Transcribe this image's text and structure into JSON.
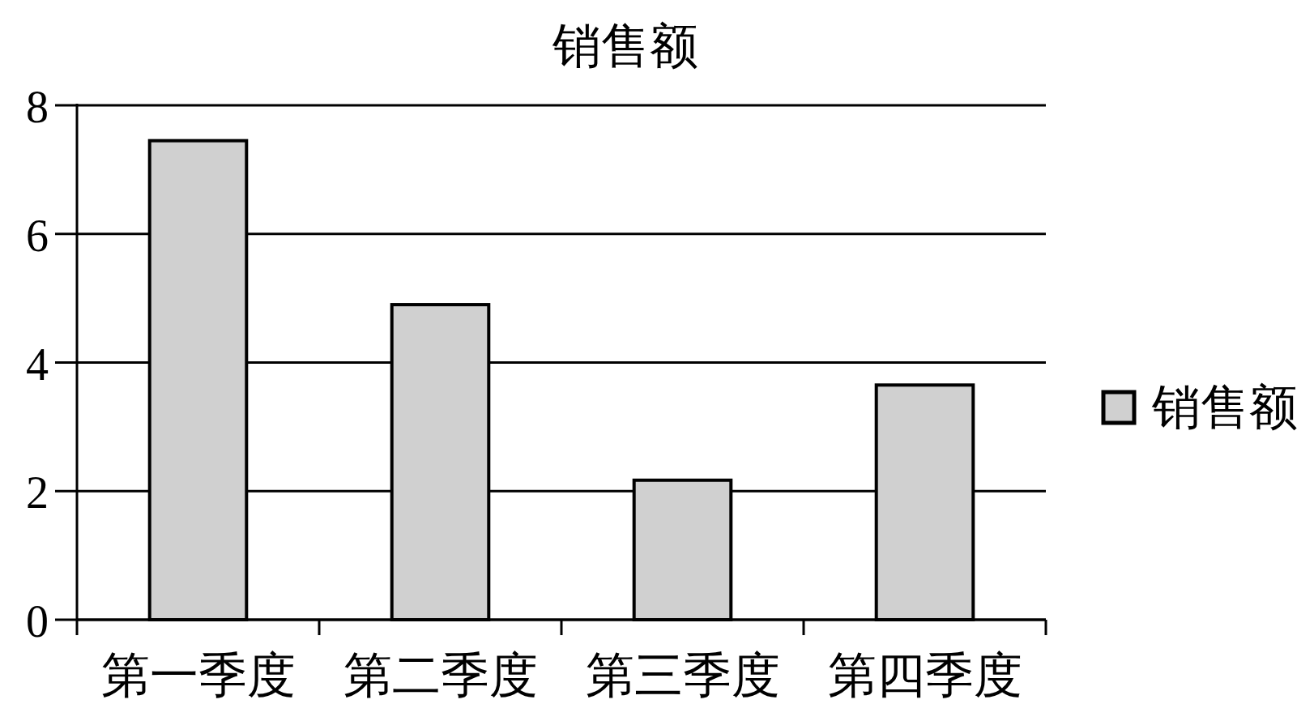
{
  "chart_data": {
    "type": "bar",
    "title": "销售额",
    "categories": [
      "第一季度",
      "第二季度",
      "第三季度",
      "第四季度"
    ],
    "series": [
      {
        "name": "销售额",
        "color": "#d0d0d0",
        "values": [
          7.45,
          4.9,
          2.17,
          3.65
        ]
      }
    ],
    "ylim": [
      0,
      8
    ],
    "yticks": [
      0,
      2,
      4,
      6,
      8
    ],
    "grid": "y",
    "legend": "right"
  }
}
